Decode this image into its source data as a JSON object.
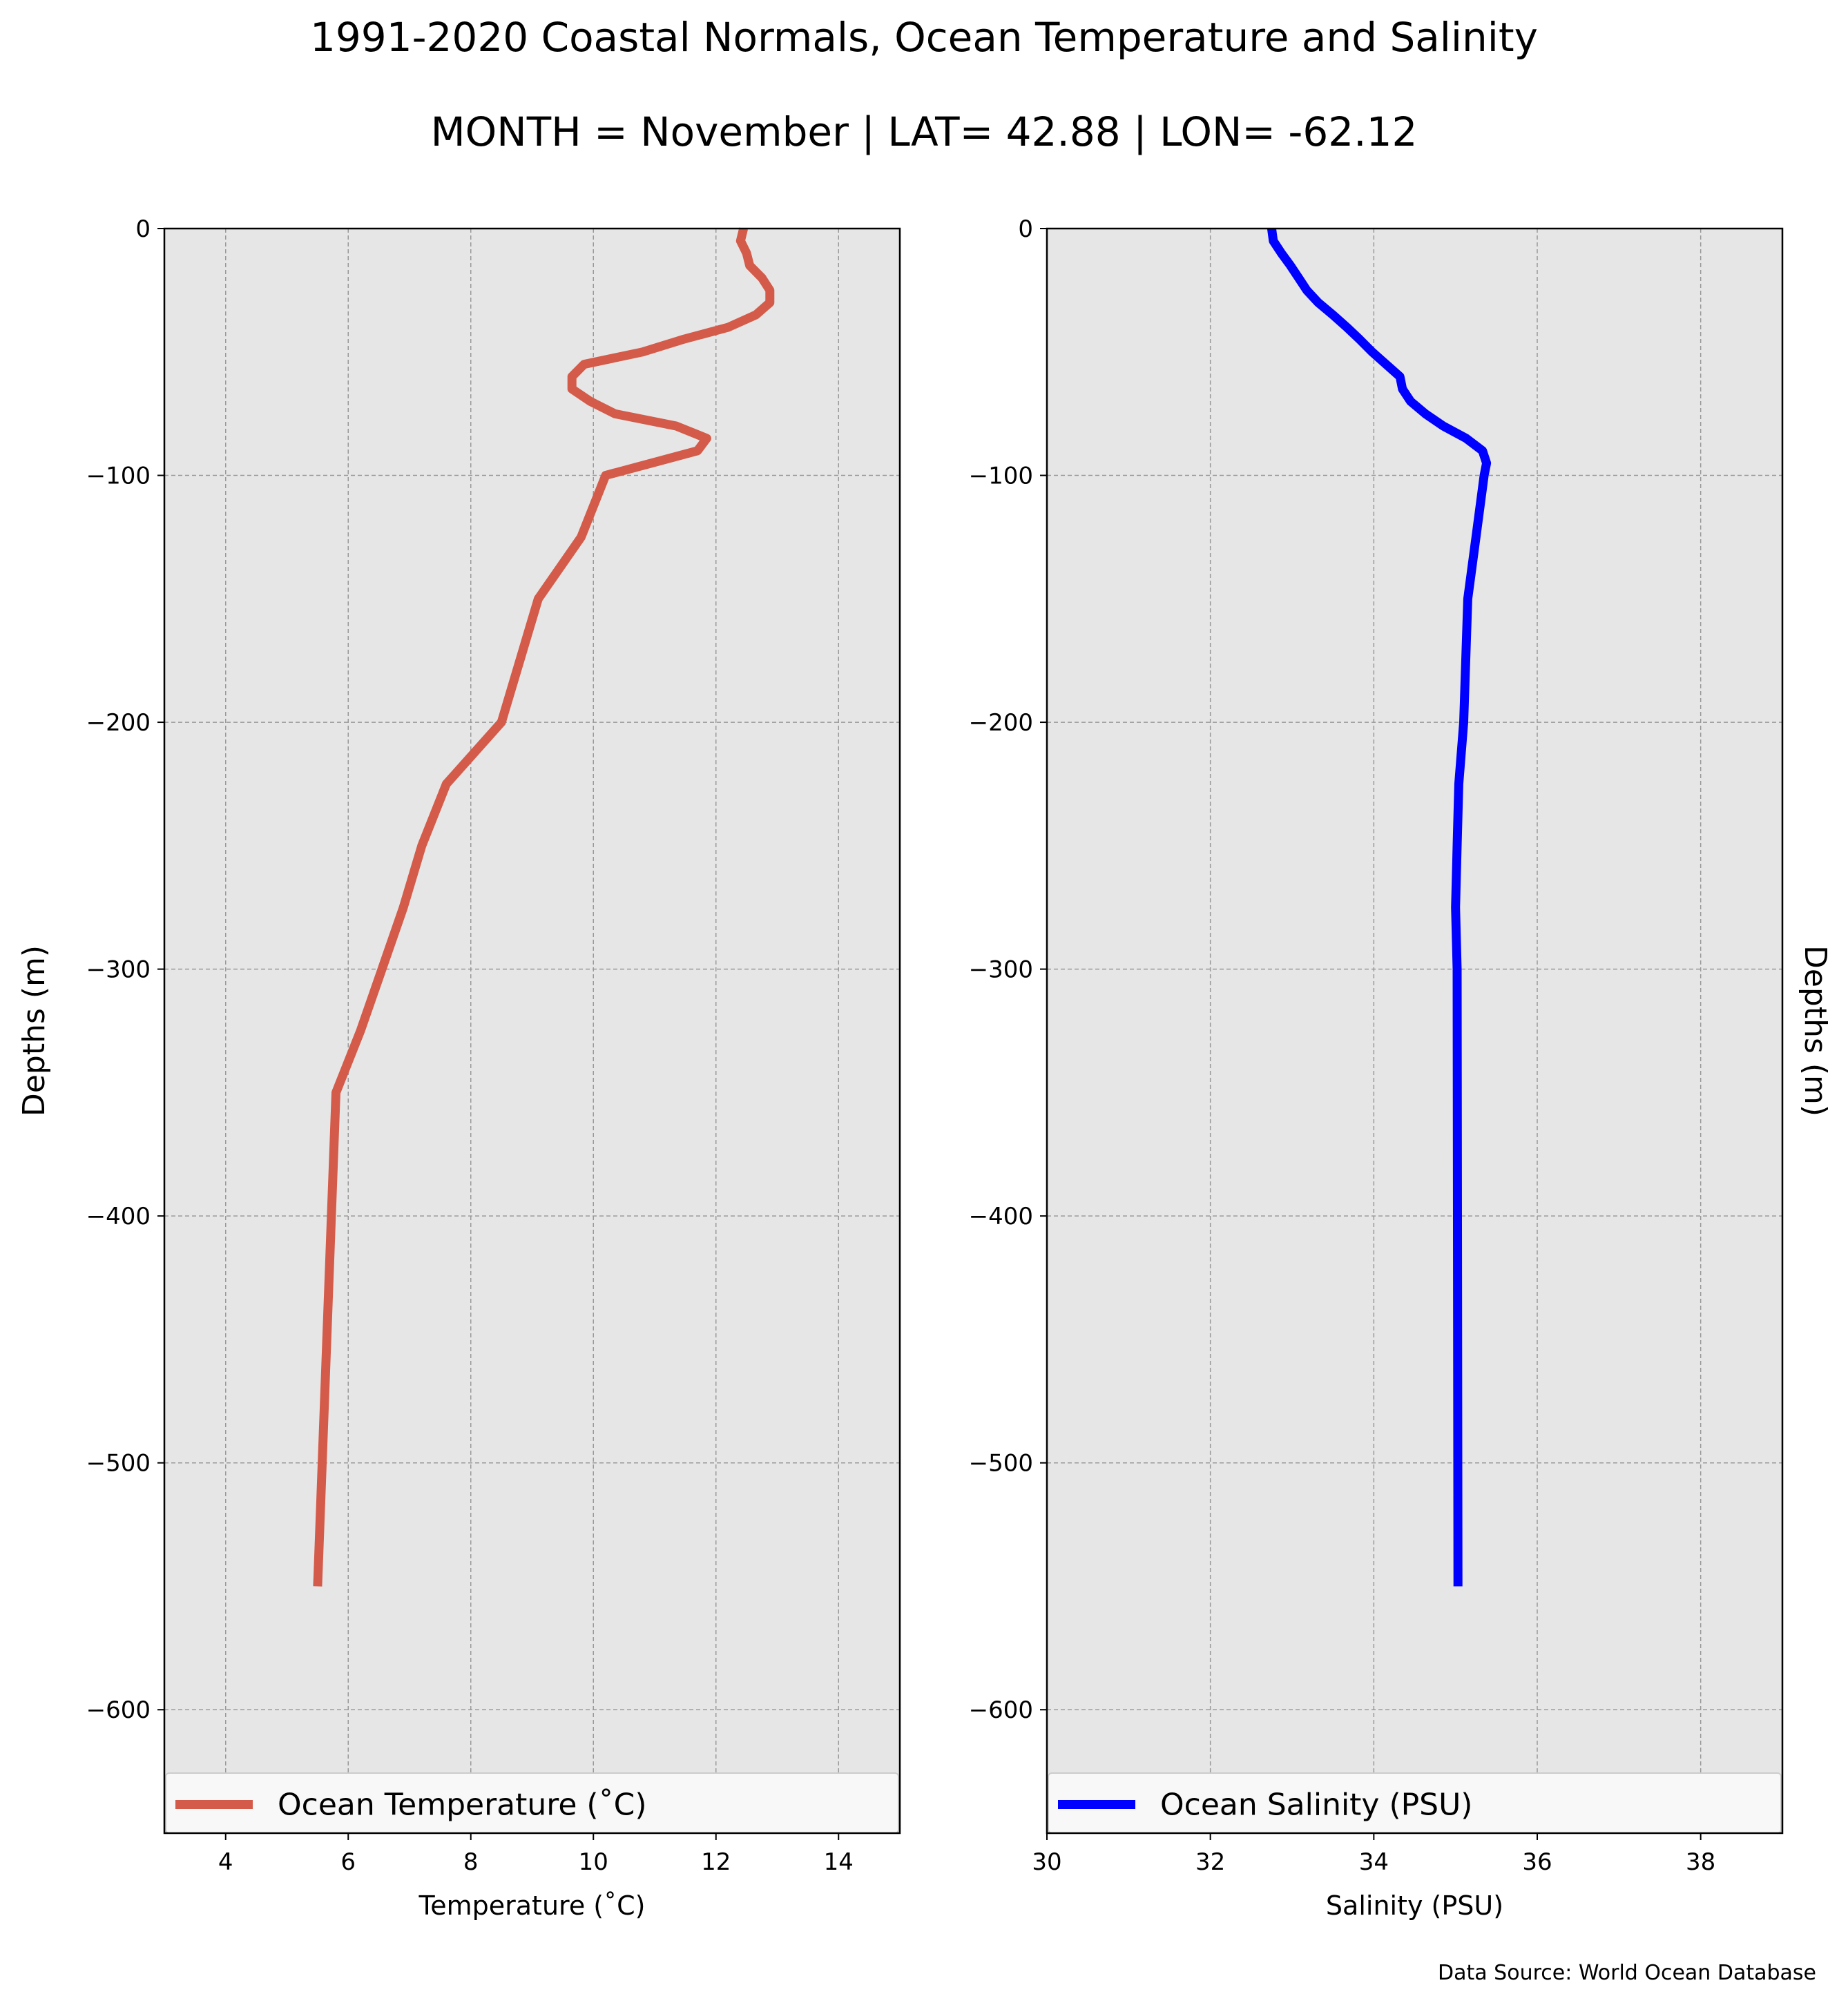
{
  "title": "1991-2020 Coastal Normals, Ocean Temperature and Salinity",
  "subtitle": "MONTH = November | LAT= 42.88 | LON= -62.12",
  "source": "Data Source: World Ocean Database",
  "colors": {
    "background": "#e6e6e6",
    "grid": "#999999",
    "temperature": "#d45b49",
    "salinity": "#0000ff"
  },
  "chart_data": [
    {
      "type": "line",
      "xlabel": "Temperature ($^\\circ$C)",
      "xlabel_display": "Temperature (˚C)",
      "ylabel": "Depths (m)",
      "xlim": [
        3,
        15
      ],
      "ylim": [
        -650,
        0
      ],
      "xticks": [
        4,
        6,
        8,
        10,
        12,
        14
      ],
      "xtick_labels": [
        "4",
        "6",
        "8",
        "10",
        "12",
        "14"
      ],
      "yticks": [
        0,
        -100,
        -200,
        -300,
        -400,
        -500,
        -600
      ],
      "ytick_labels": [
        "0",
        "−100",
        "−200",
        "−300",
        "−400",
        "−500",
        "−600"
      ],
      "grid": true,
      "legend_position": "bottom",
      "series": [
        {
          "name": "Ocean Temperature (˚C)",
          "color": "#d45b49",
          "x": [
            12.45,
            12.4,
            12.5,
            12.55,
            12.75,
            12.88,
            12.88,
            12.65,
            12.2,
            11.45,
            10.8,
            9.85,
            9.65,
            9.65,
            9.95,
            10.35,
            11.35,
            11.85,
            11.7,
            10.95,
            10.2,
            9.8,
            9.1,
            8.5,
            7.6,
            7.2,
            6.9,
            6.55,
            6.2,
            5.8,
            5.5
          ],
          "y": [
            0,
            -5,
            -10,
            -15,
            -20,
            -25,
            -30,
            -35,
            -40,
            -45,
            -50,
            -55,
            -60,
            -65,
            -70,
            -75,
            -80,
            -85,
            -90,
            -95,
            -100,
            -125,
            -150,
            -200,
            -225,
            -250,
            -275,
            -300,
            -325,
            -350,
            -550
          ]
        }
      ]
    },
    {
      "type": "line",
      "xlabel": "Salinity (PSU)",
      "ylabel": "Depths (m)",
      "xlim": [
        30,
        39
      ],
      "ylim": [
        -650,
        0
      ],
      "xticks": [
        30,
        32,
        34,
        36,
        38
      ],
      "xtick_labels": [
        "30",
        "32",
        "34",
        "36",
        "38"
      ],
      "yticks": [
        0,
        -100,
        -200,
        -300,
        -400,
        -500,
        -600
      ],
      "ytick_labels": [
        "0",
        "−100",
        "−200",
        "−300",
        "−400",
        "−500",
        "−600"
      ],
      "grid": true,
      "legend_position": "bottom",
      "series": [
        {
          "name": "Ocean Salinity (PSU)",
          "color": "#0000ff",
          "x": [
            32.75,
            32.77,
            32.87,
            32.98,
            33.08,
            33.18,
            33.32,
            33.5,
            33.67,
            33.83,
            33.98,
            34.15,
            34.32,
            34.35,
            34.45,
            34.63,
            34.85,
            35.13,
            35.33,
            35.38,
            35.35,
            35.25,
            35.15,
            35.1,
            35.04,
            35.02,
            35.0,
            35.02,
            35.03
          ],
          "y": [
            0,
            -5,
            -10,
            -15,
            -20,
            -25,
            -30,
            -35,
            -40,
            -45,
            -50,
            -55,
            -60,
            -65,
            -70,
            -75,
            -80,
            -85,
            -90,
            -95,
            -100,
            -125,
            -150,
            -200,
            -225,
            -250,
            -275,
            -300,
            -550
          ]
        }
      ]
    }
  ]
}
